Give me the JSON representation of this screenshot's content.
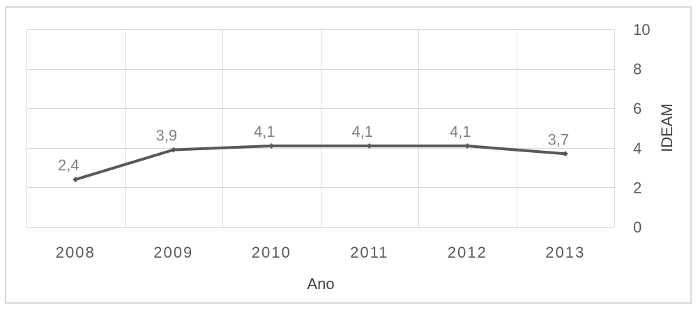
{
  "chart_data": {
    "type": "line",
    "categories": [
      "2008",
      "2009",
      "2010",
      "2011",
      "2012",
      "2013"
    ],
    "values": [
      2.4,
      3.9,
      4.1,
      4.1,
      4.1,
      3.7
    ],
    "data_labels": [
      "2,4",
      "3,9",
      "4,1",
      "4,1",
      "4,1",
      "3,7"
    ],
    "title": "",
    "xlabel": "Ano",
    "ylabel": "IDEAM",
    "ylim": [
      0,
      10
    ],
    "yticks": [
      "0",
      "2",
      "4",
      "6",
      "8",
      "10"
    ],
    "y_axis_side": "right",
    "grid": true,
    "colors": {
      "line": "#595959",
      "grid": "#d9d9d9",
      "frame": "#d9d9d9",
      "tick_text": "#595959",
      "data_label_text": "#808080"
    }
  }
}
